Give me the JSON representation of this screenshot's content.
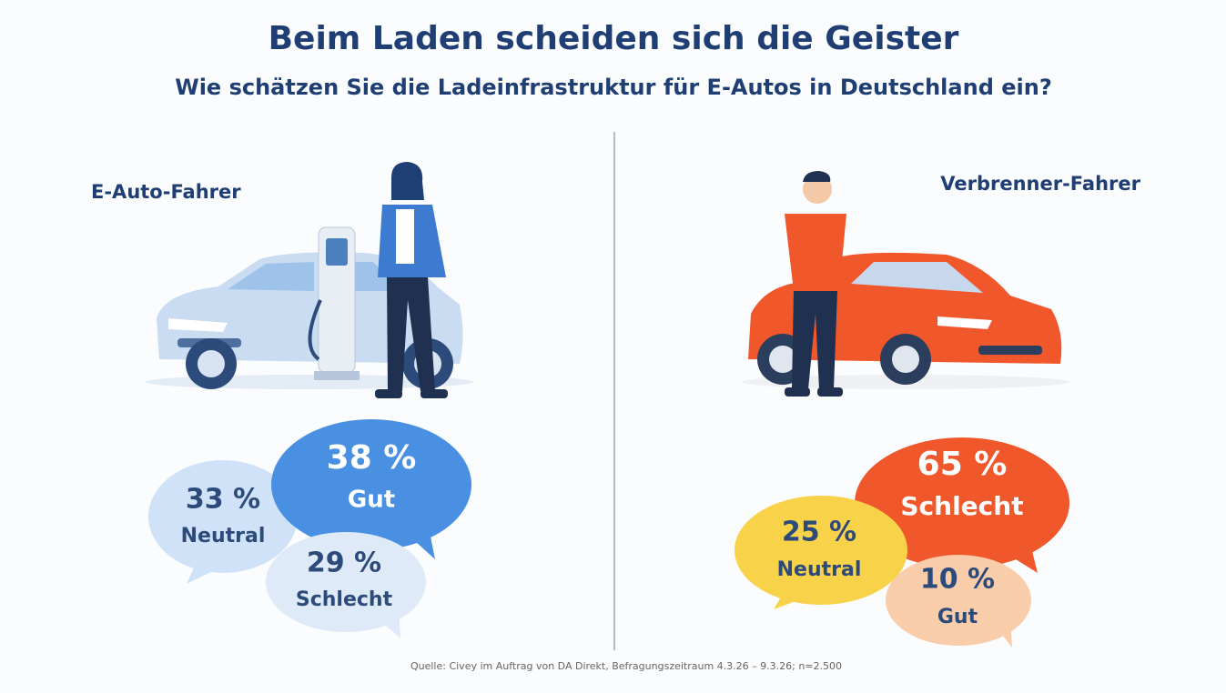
{
  "header": {
    "title": "Beim Laden scheiden sich die Geister",
    "subtitle": "Wie schätzen Sie die Ladeinfrastruktur für E-Autos in Deutschland ein?"
  },
  "groups": [
    {
      "label": "E-Auto-Fahrer",
      "bubbles": [
        {
          "value": "38 %",
          "label": "Gut"
        },
        {
          "value": "33 %",
          "label": "Neutral"
        },
        {
          "value": "29 %",
          "label": "Schlecht"
        }
      ]
    },
    {
      "label": "Verbrenner-Fahrer",
      "bubbles": [
        {
          "value": "65 %",
          "label": "Schlecht"
        },
        {
          "value": "25 %",
          "label": "Neutral"
        },
        {
          "value": "10 %",
          "label": "Gut"
        }
      ]
    }
  ],
  "source": "Quelle: Civey im Auftrag von DA Direkt, Befragungszeitraum 4.3.26 – 9.3.26; n=2.500"
}
